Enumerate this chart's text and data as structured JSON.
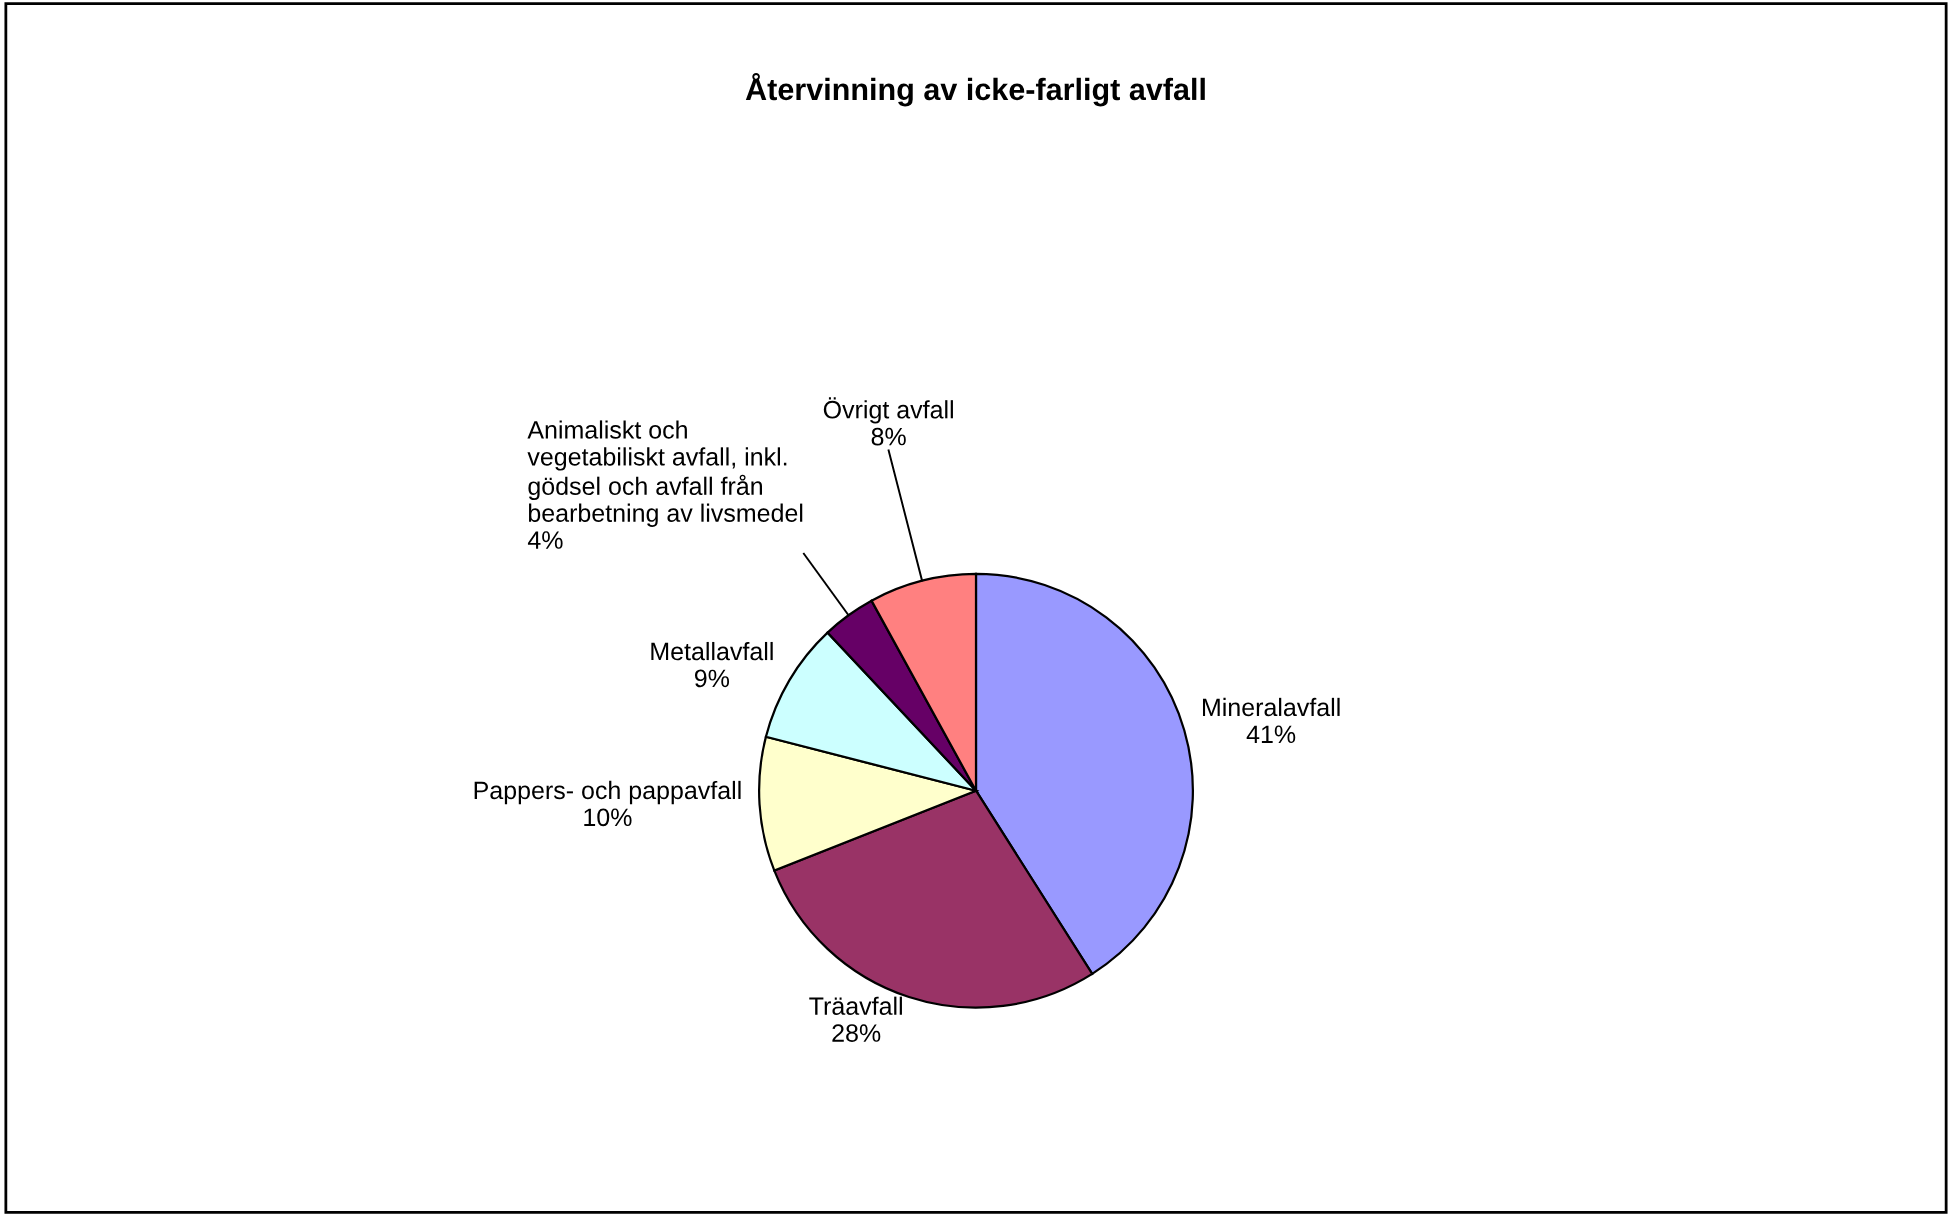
{
  "chart_data": {
    "type": "pie",
    "title": "Återvinning av icke-farligt avfall",
    "categories": [
      "Mineralavfall",
      "Träavfall",
      "Pappers- och pappavfall",
      "Metallavfall",
      "Animaliskt och\nvegetabiliskt avfall, inkl.\ngödsel och avfall från\nbearbetning av livsmedel",
      "Övrigt avfall"
    ],
    "values": [
      41,
      28,
      10,
      9,
      4,
      8
    ],
    "colors": [
      "#9999ff",
      "#993366",
      "#ffffcc",
      "#ccffff",
      "#660066",
      "#ff8080"
    ],
    "value_labels": [
      "41%",
      "28%",
      "10%",
      "9%",
      "4%",
      "8%"
    ],
    "legend": false
  }
}
